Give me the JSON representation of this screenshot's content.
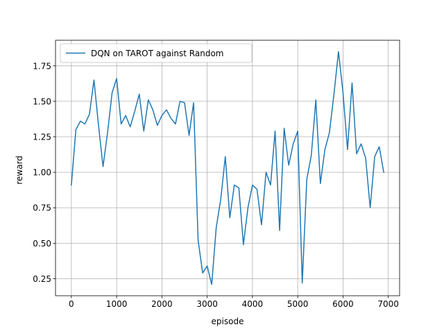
{
  "chart_data": {
    "type": "line",
    "title": "",
    "xlabel": "episode",
    "ylabel": "reward",
    "xlim": [
      -350,
      7250
    ],
    "ylim": [
      0.13,
      1.93
    ],
    "xticks": [
      0,
      1000,
      2000,
      3000,
      4000,
      5000,
      6000,
      7000
    ],
    "yticks": [
      0.25,
      0.5,
      0.75,
      1.0,
      1.25,
      1.5,
      1.75
    ],
    "grid": true,
    "legend_position": "upper left",
    "colors": {
      "line": "#1f77b4",
      "grid": "#b0b0b0",
      "axes": "#000000"
    },
    "series": [
      {
        "name": "DQN on TAROT against Random",
        "x": [
          0,
          100,
          200,
          300,
          400,
          500,
          600,
          700,
          800,
          900,
          1000,
          1100,
          1200,
          1300,
          1400,
          1500,
          1600,
          1700,
          1800,
          1900,
          2000,
          2100,
          2200,
          2300,
          2400,
          2500,
          2600,
          2700,
          2800,
          2900,
          3000,
          3100,
          3200,
          3300,
          3400,
          3500,
          3600,
          3700,
          3800,
          3900,
          4000,
          4100,
          4200,
          4300,
          4400,
          4500,
          4600,
          4700,
          4800,
          4900,
          5000,
          5100,
          5200,
          5300,
          5400,
          5500,
          5600,
          5700,
          5800,
          5900,
          6000,
          6100,
          6200,
          6300,
          6400,
          6500,
          6600,
          6700,
          6800,
          6900
        ],
        "y": [
          0.91,
          1.3,
          1.36,
          1.34,
          1.41,
          1.65,
          1.33,
          1.04,
          1.28,
          1.56,
          1.66,
          1.34,
          1.4,
          1.32,
          1.43,
          1.55,
          1.29,
          1.51,
          1.44,
          1.33,
          1.4,
          1.44,
          1.38,
          1.34,
          1.5,
          1.49,
          1.26,
          1.49,
          0.52,
          0.29,
          0.34,
          0.21,
          0.61,
          0.81,
          1.11,
          0.68,
          0.91,
          0.89,
          0.49,
          0.75,
          0.91,
          0.88,
          0.63,
          1.0,
          0.91,
          1.29,
          0.59,
          1.31,
          1.05,
          1.2,
          1.29,
          0.22,
          0.95,
          1.12,
          1.51,
          0.92,
          1.16,
          1.28,
          1.55,
          1.85,
          1.56,
          1.16,
          1.63,
          1.13,
          1.2,
          1.1,
          0.75,
          1.11,
          1.18,
          1.0
        ]
      }
    ]
  }
}
